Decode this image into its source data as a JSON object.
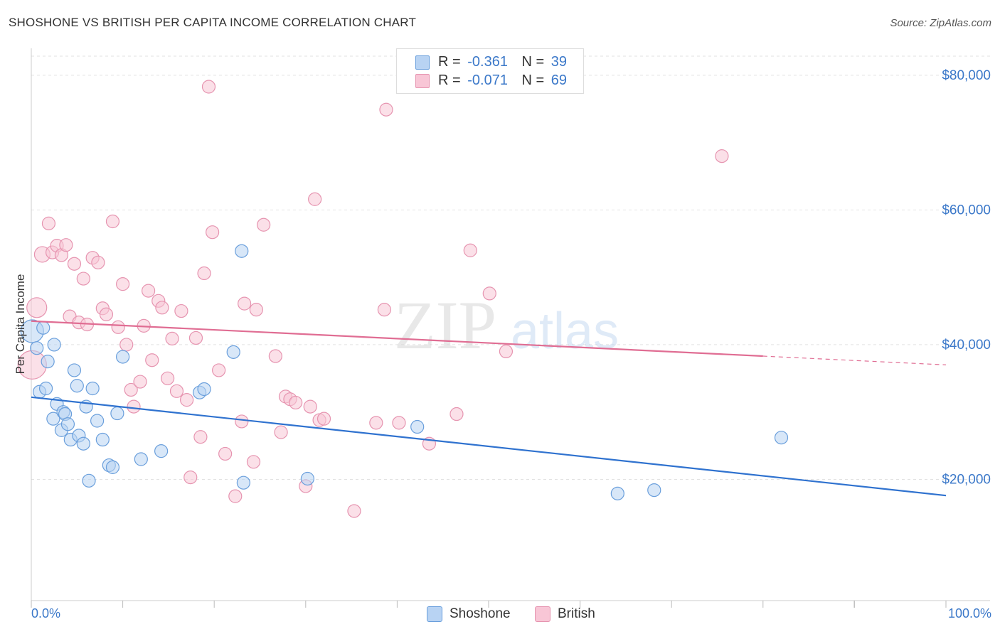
{
  "header": {
    "title": "SHOSHONE VS BRITISH PER CAPITA INCOME CORRELATION CHART",
    "source": "Source: ZipAtlas.com"
  },
  "watermark": {
    "zip": "ZIP",
    "atlas": "atlas"
  },
  "legend": {
    "shoshone": {
      "r_label": "R =",
      "r_value": "-0.361",
      "n_label": "N =",
      "n_value": "39"
    },
    "british": {
      "r_label": "R =",
      "r_value": "-0.071",
      "n_label": "N =",
      "n_value": "69"
    }
  },
  "chart_data": {
    "type": "scatter",
    "title": "SHOSHONE VS BRITISH PER CAPITA INCOME CORRELATION CHART",
    "xlabel": "",
    "ylabel": "Per Capita Income",
    "xlim": [
      0,
      100
    ],
    "ylim": [
      2000,
      84000
    ],
    "x_tick_labels": {
      "min": "0.0%",
      "max": "100.0%"
    },
    "y_ticks": [
      {
        "value": 20000,
        "label": "$20,000"
      },
      {
        "value": 40000,
        "label": "$40,000"
      },
      {
        "value": 60000,
        "label": "$60,000"
      },
      {
        "value": 80000,
        "label": "$80,000"
      }
    ],
    "colors": {
      "shoshone_fill": "#b8d3f3",
      "shoshone_stroke": "#6a9fdc",
      "shoshone_line": "#2f72cf",
      "british_fill": "#f8c6d6",
      "british_stroke": "#e694b0",
      "british_line": "#e06d93"
    },
    "series": [
      {
        "name": "Shoshone",
        "points": [
          [
            0.1,
            42000,
            16
          ],
          [
            0.6,
            39500,
            9
          ],
          [
            1.3,
            42500,
            9
          ],
          [
            1.8,
            37500,
            9
          ],
          [
            0.9,
            33000,
            9
          ],
          [
            1.6,
            33500,
            9
          ],
          [
            2.4,
            29000,
            9
          ],
          [
            2.5,
            40000,
            9
          ],
          [
            2.8,
            31200,
            9
          ],
          [
            3.3,
            27300,
            9
          ],
          [
            3.5,
            30000,
            9
          ],
          [
            3.7,
            29700,
            9
          ],
          [
            4.0,
            28200,
            9
          ],
          [
            4.3,
            25900,
            9
          ],
          [
            4.7,
            36200,
            9
          ],
          [
            5.0,
            33900,
            9
          ],
          [
            5.2,
            26500,
            9
          ],
          [
            5.7,
            25300,
            9
          ],
          [
            6.0,
            30800,
            9
          ],
          [
            6.3,
            19800,
            9
          ],
          [
            6.7,
            33500,
            9
          ],
          [
            7.2,
            28700,
            9
          ],
          [
            7.8,
            25900,
            9
          ],
          [
            8.5,
            22100,
            9
          ],
          [
            8.9,
            21800,
            9
          ],
          [
            9.4,
            29800,
            9
          ],
          [
            10.0,
            38200,
            9
          ],
          [
            12.0,
            23000,
            9
          ],
          [
            14.2,
            24200,
            9
          ],
          [
            18.4,
            32900,
            9
          ],
          [
            18.9,
            33400,
            9
          ],
          [
            22.1,
            38900,
            9
          ],
          [
            23.0,
            53900,
            9
          ],
          [
            23.2,
            19500,
            9
          ],
          [
            30.2,
            20100,
            9
          ],
          [
            42.2,
            27800,
            9
          ],
          [
            64.1,
            17900,
            9
          ],
          [
            68.1,
            18400,
            9
          ],
          [
            82.0,
            26200,
            9
          ]
        ],
        "trend": {
          "x_start": 0,
          "y_start": 32200,
          "x_end": 100,
          "y_end": 17600,
          "dashed_from": null
        }
      },
      {
        "name": "British",
        "points": [
          [
            0.1,
            37000,
            20
          ],
          [
            0.6,
            45500,
            14
          ],
          [
            1.2,
            53400,
            11
          ],
          [
            1.9,
            58000,
            9
          ],
          [
            2.3,
            53700,
            9
          ],
          [
            2.8,
            54700,
            9
          ],
          [
            3.3,
            53300,
            9
          ],
          [
            3.8,
            54800,
            9
          ],
          [
            4.2,
            44200,
            9
          ],
          [
            4.7,
            52000,
            9
          ],
          [
            5.2,
            43300,
            9
          ],
          [
            5.7,
            49800,
            9
          ],
          [
            6.1,
            43000,
            9
          ],
          [
            6.7,
            52900,
            9
          ],
          [
            7.3,
            52200,
            9
          ],
          [
            7.8,
            45400,
            9
          ],
          [
            8.2,
            44500,
            9
          ],
          [
            8.9,
            58300,
            9
          ],
          [
            9.5,
            42600,
            9
          ],
          [
            10.0,
            49000,
            9
          ],
          [
            10.4,
            40000,
            9
          ],
          [
            10.9,
            33300,
            9
          ],
          [
            11.2,
            30800,
            9
          ],
          [
            11.9,
            34500,
            9
          ],
          [
            12.3,
            42800,
            9
          ],
          [
            12.8,
            48000,
            9
          ],
          [
            13.2,
            37700,
            9
          ],
          [
            13.9,
            46500,
            9
          ],
          [
            14.3,
            45500,
            9
          ],
          [
            14.9,
            35000,
            9
          ],
          [
            15.4,
            40900,
            9
          ],
          [
            15.9,
            33100,
            9
          ],
          [
            16.4,
            45000,
            9
          ],
          [
            17.0,
            31800,
            9
          ],
          [
            17.4,
            20300,
            9
          ],
          [
            18.0,
            41000,
            9
          ],
          [
            18.5,
            26300,
            9
          ],
          [
            18.9,
            50600,
            9
          ],
          [
            19.4,
            78300,
            9
          ],
          [
            19.8,
            56700,
            9
          ],
          [
            20.5,
            36200,
            9
          ],
          [
            21.2,
            23800,
            9
          ],
          [
            22.3,
            17500,
            9
          ],
          [
            23.0,
            28600,
            9
          ],
          [
            23.3,
            46100,
            9
          ],
          [
            24.3,
            22600,
            9
          ],
          [
            24.6,
            45200,
            9
          ],
          [
            25.4,
            57800,
            9
          ],
          [
            27.3,
            27000,
            9
          ],
          [
            27.8,
            32300,
            9
          ],
          [
            28.3,
            31900,
            9
          ],
          [
            28.9,
            31400,
            9
          ],
          [
            30.0,
            19000,
            9
          ],
          [
            30.5,
            30800,
            9
          ],
          [
            31.0,
            61600,
            9
          ],
          [
            31.5,
            28800,
            9
          ],
          [
            32.0,
            29000,
            9
          ],
          [
            35.3,
            15300,
            9
          ],
          [
            37.7,
            28400,
            9
          ],
          [
            38.6,
            45200,
            9
          ],
          [
            38.8,
            74900,
            9
          ],
          [
            40.2,
            28400,
            9
          ],
          [
            43.5,
            25300,
            9
          ],
          [
            46.5,
            29700,
            9
          ],
          [
            48.0,
            54000,
            9
          ],
          [
            50.1,
            47600,
            9
          ],
          [
            51.9,
            39000,
            9
          ],
          [
            75.5,
            68000,
            9
          ],
          [
            26.7,
            38300,
            9
          ]
        ],
        "trend": {
          "x_start": 0,
          "y_start": 43500,
          "x_end": 100,
          "y_end": 37000,
          "dashed_from": 80
        }
      }
    ]
  }
}
